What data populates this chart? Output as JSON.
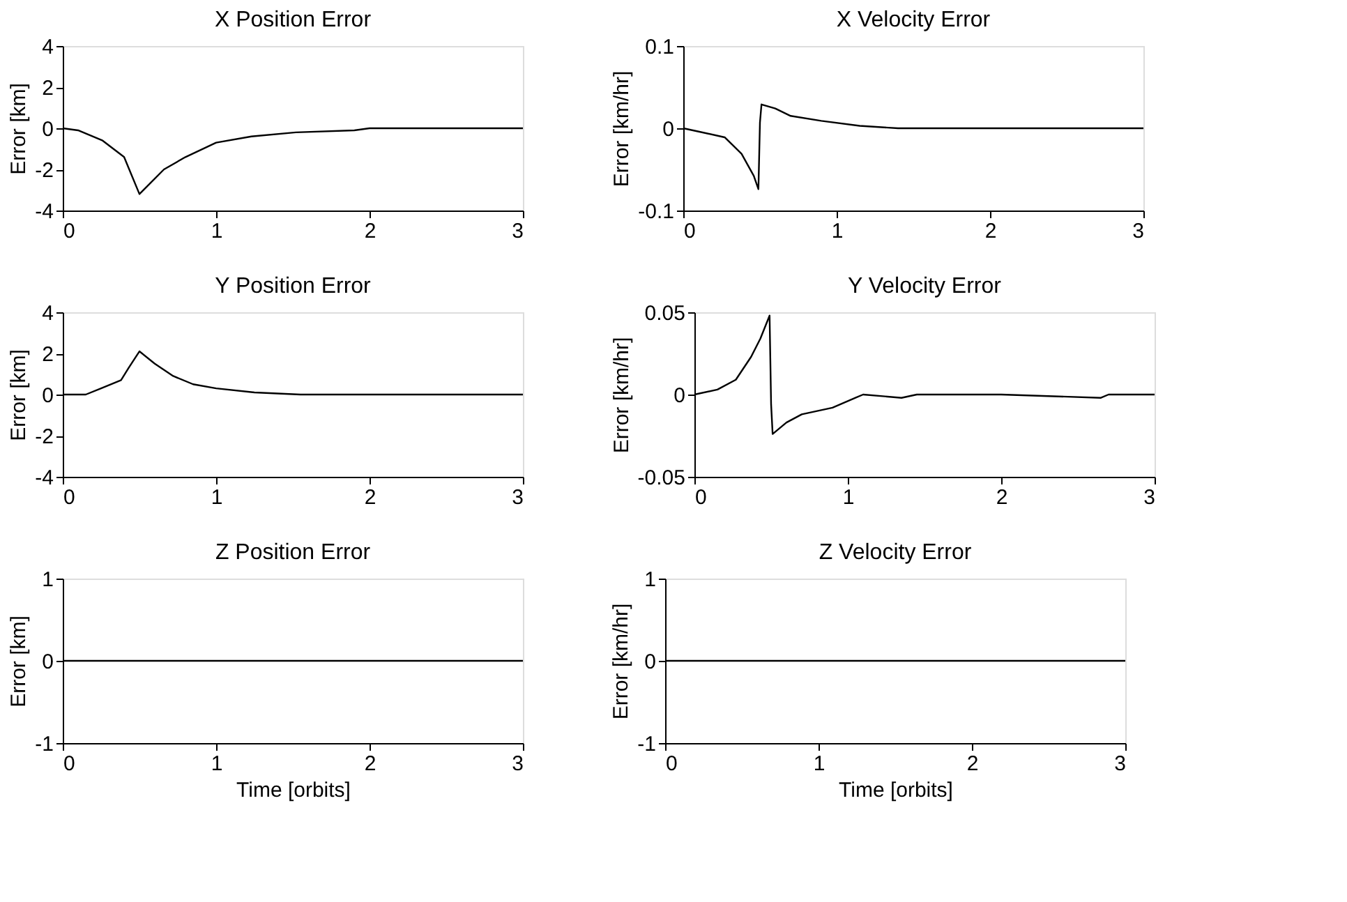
{
  "chart_data": [
    {
      "type": "line",
      "title": "X Position Error",
      "ylabel": "Error [km]",
      "xlim": [
        0,
        3
      ],
      "xticks": [
        0,
        1,
        2,
        3
      ],
      "ylim": [
        -4,
        4
      ],
      "yticks": [
        -4,
        -2,
        0,
        2,
        4
      ],
      "series": [
        {
          "color": "#000000",
          "x": [
            0,
            0.1,
            0.26,
            0.4,
            0.5,
            0.66,
            0.8,
            1.0,
            1.23,
            1.52,
            1.9,
            2.0,
            3.0
          ],
          "values": [
            0,
            -0.1,
            -0.6,
            -1.4,
            -3.2,
            -2.0,
            -1.4,
            -0.7,
            -0.4,
            -0.2,
            -0.1,
            0,
            0
          ]
        }
      ]
    },
    {
      "type": "line",
      "title": "X Velocity Error",
      "ylabel": "Error [km/hr]",
      "xlim": [
        0,
        3
      ],
      "xticks": [
        0,
        1,
        2,
        3
      ],
      "ylim": [
        -0.1,
        0.1
      ],
      "yticks": [
        -0.1,
        0,
        0.1
      ],
      "series": [
        {
          "color": "#000000",
          "x": [
            0,
            0.1,
            0.27,
            0.38,
            0.46,
            0.49,
            0.5,
            0.51,
            0.6,
            0.7,
            0.9,
            1.15,
            1.4,
            2.0,
            3.0
          ],
          "values": [
            0,
            -0.004,
            -0.011,
            -0.031,
            -0.058,
            -0.074,
            0.007,
            0.029,
            0.024,
            0.015,
            0.009,
            0.003,
            0,
            0,
            0
          ]
        }
      ]
    },
    {
      "type": "line",
      "title": "Y Position Error",
      "ylabel": "Error [km]",
      "xlim": [
        0,
        3
      ],
      "xticks": [
        0,
        1,
        2,
        3
      ],
      "ylim": [
        -4,
        4
      ],
      "yticks": [
        -4,
        -2,
        0,
        2,
        4
      ],
      "series": [
        {
          "color": "#000000",
          "x": [
            0,
            0.15,
            0.25,
            0.38,
            0.43,
            0.5,
            0.6,
            0.72,
            0.85,
            1.0,
            1.25,
            1.55,
            2.0,
            3.0
          ],
          "values": [
            0,
            0,
            0.3,
            0.7,
            1.3,
            2.1,
            1.5,
            0.9,
            0.5,
            0.3,
            0.1,
            0,
            0,
            0
          ]
        }
      ]
    },
    {
      "type": "line",
      "title": "Y Velocity Error",
      "ylabel": "Error [km/hr]",
      "xlim": [
        0,
        3
      ],
      "xticks": [
        0,
        1,
        2,
        3
      ],
      "ylim": [
        -0.05,
        0.05
      ],
      "yticks": [
        -0.05,
        0,
        0.05
      ],
      "series": [
        {
          "color": "#000000",
          "x": [
            0,
            0.15,
            0.27,
            0.37,
            0.43,
            0.49,
            0.5,
            0.51,
            0.6,
            0.7,
            0.9,
            1.05,
            1.1,
            1.35,
            1.45,
            2.0,
            2.65,
            2.7,
            3.0
          ],
          "values": [
            0,
            0.003,
            0.009,
            0.023,
            0.034,
            0.048,
            -0.006,
            -0.024,
            -0.017,
            -0.012,
            -0.008,
            -0.002,
            0,
            -0.002,
            0,
            0,
            -0.002,
            0,
            0
          ]
        }
      ]
    },
    {
      "type": "line",
      "title": "Z Position Error",
      "xlabel": "Time [orbits]",
      "ylabel": "Error [km]",
      "xlim": [
        0,
        3
      ],
      "xticks": [
        0,
        1,
        2,
        3
      ],
      "ylim": [
        -1,
        1
      ],
      "yticks": [
        -1,
        0,
        1
      ],
      "series": [
        {
          "color": "#000000",
          "x": [
            0,
            3
          ],
          "values": [
            0,
            0
          ]
        }
      ]
    },
    {
      "type": "line",
      "title": "Z Velocity Error",
      "xlabel": "Time [orbits]",
      "ylabel": "Error [km/hr]",
      "xlim": [
        0,
        3
      ],
      "xticks": [
        0,
        1,
        2,
        3
      ],
      "ylim": [
        -1,
        1
      ],
      "yticks": [
        -1,
        0,
        1
      ],
      "series": [
        {
          "color": "#000000",
          "x": [
            0,
            3
          ],
          "values": [
            0,
            0
          ]
        }
      ]
    }
  ]
}
